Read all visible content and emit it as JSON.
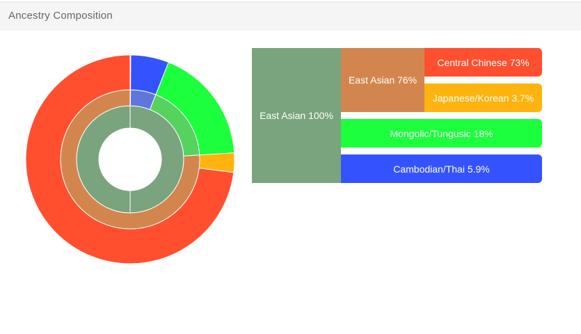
{
  "header": {
    "title": "Ancestry Composition"
  },
  "chart_data": {
    "type": "sunburst",
    "title": "",
    "root": {
      "name": "East Asian",
      "value": 100,
      "color": "#79a47d",
      "children": [
        {
          "name": "East Asian",
          "value": 76,
          "color": "#d2864e",
          "children": [
            {
              "name": "Central Chinese",
              "value": 73,
              "color": "#ff4f2f"
            },
            {
              "name": "Japanese/Korean",
              "value": 3.7,
              "color": "#ffb30e"
            }
          ]
        },
        {
          "name": "Mongolic/Tungusic",
          "value": 18,
          "color": "#1bff3c",
          "inner_color": "#55d35e"
        },
        {
          "name": "Cambodian/Thai",
          "value": 5.9,
          "color": "#3453ff",
          "inner_color": "#5f77dd"
        }
      ]
    },
    "legend_labels": {
      "root": "East Asian 100%",
      "east_asian": "East Asian 76%",
      "central_chinese": "Central Chinese 73%",
      "japanese_korean": "Japanese/Korean 3.7%",
      "mongolic_tungusic": "Mongolic/Tungusic 18%",
      "cambodian_thai": "Cambodian/Thai 5.9%"
    }
  }
}
